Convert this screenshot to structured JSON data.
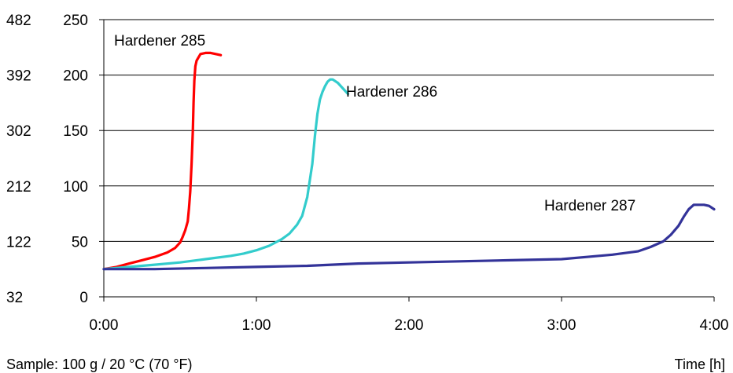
{
  "chart_data": {
    "type": "line",
    "title": "",
    "xlabel": "Time [h]",
    "ylabel": "",
    "xlim": [
      0,
      240
    ],
    "ylim": [
      0,
      250
    ],
    "x_tick_values": [
      0,
      60,
      120,
      180,
      240
    ],
    "x_tick_labels": [
      "0:00",
      "1:00",
      "2:00",
      "3:00",
      "4:00"
    ],
    "y_tick_values": [
      0,
      50,
      100,
      150,
      200,
      250
    ],
    "y_tick_labels": [
      "0",
      "50",
      "100",
      "150",
      "200",
      "250"
    ],
    "y2_tick_labels": [
      "32",
      "122",
      "212",
      "302",
      "392",
      "482"
    ],
    "grid": "horizontal",
    "legend": "none",
    "note": "Sample: 100 g / 20 °C (70 °F)",
    "series": [
      {
        "name": "Hardener 285",
        "color": "#ff0000",
        "x": [
          0,
          5,
          10,
          15,
          20,
          25,
          28,
          30,
          31,
          32,
          33,
          33.5,
          34,
          34.5,
          35,
          35.3,
          35.6,
          36,
          36.5,
          37,
          38,
          40,
          42,
          44,
          46
        ],
        "y": [
          25,
          27,
          30,
          33,
          36,
          40,
          44,
          49,
          54,
          60,
          68,
          80,
          95,
          120,
          150,
          175,
          195,
          208,
          213,
          215,
          219,
          220,
          220,
          219,
          218
        ]
      },
      {
        "name": "Hardener 286",
        "color": "#33cccc",
        "x": [
          0,
          10,
          20,
          30,
          40,
          50,
          55,
          60,
          65,
          70,
          73,
          76,
          78,
          80,
          82,
          83,
          84,
          85,
          86,
          87,
          88,
          89,
          90,
          92,
          94,
          96
        ],
        "y": [
          25,
          27,
          29,
          31,
          34,
          37,
          39,
          42,
          46,
          52,
          57,
          65,
          73,
          90,
          120,
          145,
          165,
          178,
          185,
          190,
          194,
          196,
          196,
          193,
          188,
          183
        ]
      },
      {
        "name": "Hardener 287",
        "color": "#333399",
        "x": [
          0,
          20,
          40,
          60,
          80,
          100,
          120,
          140,
          160,
          180,
          190,
          200,
          210,
          215,
          220,
          223,
          226,
          228,
          230,
          232,
          234,
          236,
          238,
          240
        ],
        "y": [
          25,
          25,
          26,
          27,
          28,
          30,
          31,
          32,
          33,
          34,
          36,
          38,
          41,
          45,
          50,
          56,
          64,
          72,
          79,
          83,
          83,
          83,
          82,
          79
        ]
      }
    ]
  }
}
